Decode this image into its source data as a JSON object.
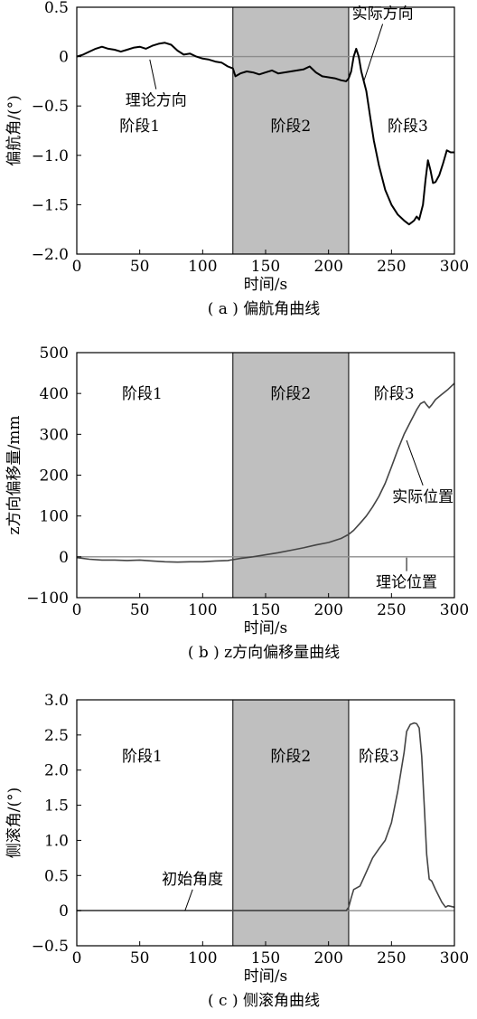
{
  "chart_data": [
    {
      "id": "a",
      "type": "line",
      "caption": "( a ) 偏航角曲线",
      "xlabel": "时间/s",
      "ylabel": "偏航角/(°)",
      "xlim": [
        0,
        300
      ],
      "ylim": [
        -2.0,
        0.5
      ],
      "xticks": [
        0,
        50,
        100,
        150,
        200,
        250,
        300
      ],
      "xtick_labels": [
        "0",
        "50",
        "100",
        "150",
        "200",
        "250",
        "300"
      ],
      "yticks": [
        -2.0,
        -1.5,
        -1.0,
        -0.5,
        0,
        0.5
      ],
      "ytick_labels": [
        "−2.0",
        "−1.5",
        "−1.0",
        "−0.5",
        "0",
        "0.5"
      ],
      "shaded_region": [
        124,
        216
      ],
      "stages": [
        {
          "label": "阶段1",
          "x": 50,
          "y": -0.7
        },
        {
          "label": "阶段2",
          "x": 170,
          "y": -0.7
        },
        {
          "label": "阶段3",
          "x": 263,
          "y": -0.7
        }
      ],
      "reference_line": {
        "y": 0
      },
      "annotations": [
        {
          "label": "理论方向",
          "pointer_from": [
            63,
            -0.33
          ],
          "pointer_to": [
            58,
            -0.03
          ]
        },
        {
          "label": "实际方向",
          "pointer_from": [
            243,
            0.33
          ],
          "pointer_to": [
            228,
            -0.25
          ]
        }
      ],
      "series": [
        {
          "x": [
            0,
            5,
            10,
            15,
            20,
            25,
            30,
            35,
            40,
            45,
            50,
            55,
            60,
            65,
            70,
            75,
            80,
            85,
            90,
            95,
            100,
            105,
            110,
            115,
            120,
            124,
            126,
            130,
            135,
            140,
            145,
            150,
            155,
            160,
            165,
            170,
            175,
            180,
            185,
            190,
            195,
            200,
            205,
            210,
            214,
            216,
            218,
            220,
            222,
            224,
            226,
            228,
            230,
            233,
            236,
            240,
            245,
            250,
            255,
            260,
            264,
            266,
            268,
            270,
            272,
            275,
            277,
            279,
            281,
            283,
            285,
            288,
            291,
            294,
            297,
            300
          ],
          "y": [
            0,
            0.02,
            0.05,
            0.08,
            0.1,
            0.08,
            0.07,
            0.05,
            0.07,
            0.09,
            0.1,
            0.08,
            0.11,
            0.13,
            0.14,
            0.12,
            0.06,
            0.02,
            0.03,
            0.0,
            -0.02,
            -0.03,
            -0.05,
            -0.06,
            -0.1,
            -0.12,
            -0.2,
            -0.17,
            -0.15,
            -0.16,
            -0.18,
            -0.16,
            -0.14,
            -0.17,
            -0.16,
            -0.15,
            -0.14,
            -0.13,
            -0.1,
            -0.16,
            -0.2,
            -0.21,
            -0.22,
            -0.24,
            -0.25,
            -0.22,
            -0.15,
            0.0,
            0.08,
            0.0,
            -0.15,
            -0.25,
            -0.35,
            -0.6,
            -0.85,
            -1.1,
            -1.35,
            -1.5,
            -1.6,
            -1.66,
            -1.7,
            -1.68,
            -1.66,
            -1.62,
            -1.65,
            -1.5,
            -1.25,
            -1.05,
            -1.15,
            -1.28,
            -1.27,
            -1.2,
            -1.08,
            -0.95,
            -0.97,
            -0.97
          ]
        }
      ]
    },
    {
      "id": "b",
      "type": "line",
      "caption": "( b ) z方向偏移量曲线",
      "xlabel": "时间/s",
      "ylabel": "z方向偏移量/mm",
      "xlim": [
        0,
        300
      ],
      "ylim": [
        -100,
        500
      ],
      "xticks": [
        0,
        50,
        100,
        150,
        200,
        250,
        300
      ],
      "xtick_labels": [
        "0",
        "50",
        "100",
        "150",
        "200",
        "250",
        "300"
      ],
      "yticks": [
        -100,
        0,
        100,
        200,
        300,
        400,
        500
      ],
      "ytick_labels": [
        "−100",
        "0",
        "100",
        "200",
        "300",
        "400",
        "500"
      ],
      "shaded_region": [
        124,
        216
      ],
      "stages": [
        {
          "label": "阶段1",
          "x": 52,
          "y": 400
        },
        {
          "label": "阶段2",
          "x": 170,
          "y": 400
        },
        {
          "label": "阶段3",
          "x": 252,
          "y": 400
        }
      ],
      "reference_line": {
        "y": 0
      },
      "annotations": [
        {
          "label": "实际位置",
          "pointer_from": [
            275,
            175
          ],
          "pointer_to": [
            262,
            285
          ]
        },
        {
          "label": "理论位置",
          "pointer_from": [
            262,
            -35
          ],
          "pointer_to": [
            262,
            -2
          ]
        }
      ],
      "series": [
        {
          "x": [
            0,
            10,
            20,
            30,
            40,
            50,
            60,
            70,
            80,
            90,
            100,
            110,
            120,
            124,
            130,
            140,
            150,
            160,
            170,
            180,
            190,
            200,
            205,
            210,
            216,
            220,
            225,
            230,
            235,
            240,
            245,
            250,
            255,
            260,
            265,
            270,
            273,
            276,
            278,
            280,
            282,
            285,
            290,
            295,
            300
          ],
          "y": [
            -2,
            -6,
            -8,
            -8,
            -9,
            -8,
            -10,
            -12,
            -13,
            -12,
            -12,
            -10,
            -9,
            -7,
            -4,
            0,
            5,
            10,
            16,
            22,
            29,
            35,
            40,
            45,
            55,
            65,
            82,
            100,
            122,
            148,
            180,
            220,
            262,
            300,
            330,
            360,
            375,
            380,
            372,
            365,
            372,
            385,
            398,
            410,
            425
          ]
        }
      ]
    },
    {
      "id": "c",
      "type": "line",
      "caption": "( c ) 侧滚角曲线",
      "xlabel": "时间/s",
      "ylabel": "侧滚角/(°)",
      "xlim": [
        0,
        300
      ],
      "ylim": [
        -0.5,
        3.0
      ],
      "xticks": [
        0,
        50,
        100,
        150,
        200,
        250,
        300
      ],
      "xtick_labels": [
        "0",
        "50",
        "100",
        "150",
        "200",
        "250",
        "300"
      ],
      "yticks": [
        -0.5,
        0,
        0.5,
        1.0,
        1.5,
        2.0,
        2.5,
        3.0
      ],
      "ytick_labels": [
        "−0.5",
        "0",
        "0.5",
        "1.0",
        "1.5",
        "2.0",
        "2.5",
        "3.0"
      ],
      "shaded_region": [
        124,
        216
      ],
      "stages": [
        {
          "label": "阶段1",
          "x": 52,
          "y": 2.2
        },
        {
          "label": "阶段2",
          "x": 170,
          "y": 2.2
        },
        {
          "label": "阶段3",
          "x": 240,
          "y": 2.2
        }
      ],
      "reference_line": {
        "y": 0
      },
      "annotations": [
        {
          "label": "初始角度",
          "pointer_from": [
            92,
            0.3
          ],
          "pointer_to": [
            86,
            0.0
          ]
        }
      ],
      "series": [
        {
          "x": [
            0,
            50,
            100,
            124,
            150,
            200,
            214,
            216,
            218,
            220,
            225,
            230,
            235,
            240,
            245,
            250,
            255,
            260,
            262,
            265,
            268,
            270,
            272,
            274,
            276,
            278,
            280,
            282,
            285,
            290,
            293,
            295,
            300
          ],
          "y": [
            0,
            0,
            0,
            0,
            0,
            0,
            0,
            0.05,
            0.18,
            0.3,
            0.35,
            0.55,
            0.75,
            0.88,
            1.0,
            1.25,
            1.7,
            2.25,
            2.55,
            2.65,
            2.67,
            2.66,
            2.6,
            2.2,
            1.5,
            0.8,
            0.45,
            0.42,
            0.3,
            0.12,
            0.05,
            0.07,
            0.05
          ]
        }
      ]
    }
  ]
}
